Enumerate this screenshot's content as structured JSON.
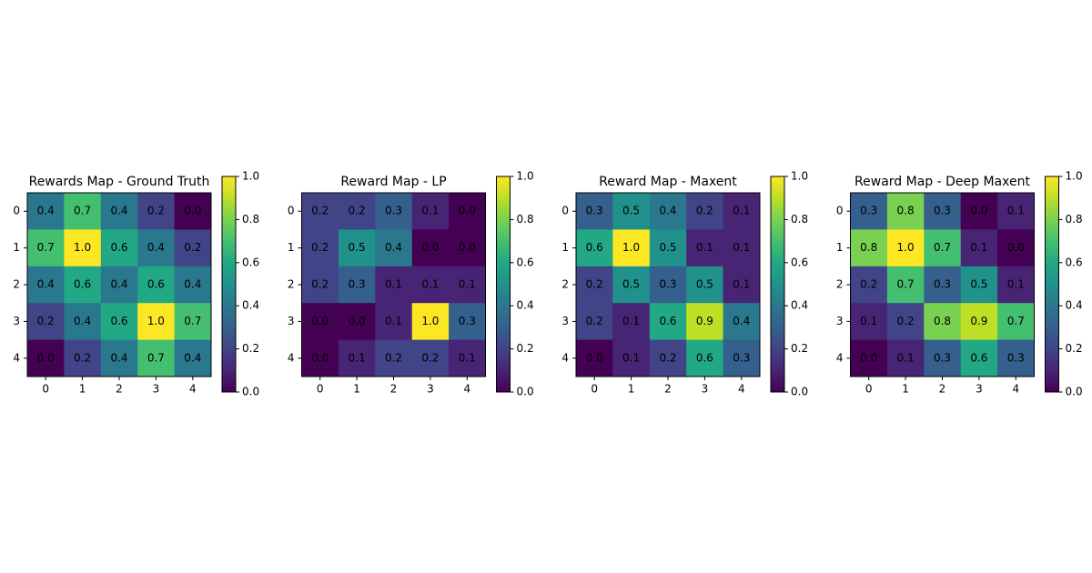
{
  "chart_data": [
    {
      "type": "heatmap",
      "title": "Rewards Map - Ground Truth",
      "colormap": "viridis",
      "x_categories": [
        "0",
        "1",
        "2",
        "3",
        "4"
      ],
      "y_categories": [
        "0",
        "1",
        "2",
        "3",
        "4"
      ],
      "values": [
        [
          0.4,
          0.7,
          0.4,
          0.2,
          0.0
        ],
        [
          0.7,
          1.0,
          0.6,
          0.4,
          0.2
        ],
        [
          0.4,
          0.6,
          0.4,
          0.6,
          0.4
        ],
        [
          0.2,
          0.4,
          0.6,
          1.0,
          0.7
        ],
        [
          0.0,
          0.2,
          0.4,
          0.7,
          0.4
        ]
      ],
      "value_labels": [
        [
          "0.4",
          "0.7",
          "0.4",
          "0.2",
          "0.0"
        ],
        [
          "0.7",
          "1.0",
          "0.6",
          "0.4",
          "0.2"
        ],
        [
          "0.4",
          "0.6",
          "0.4",
          "0.6",
          "0.4"
        ],
        [
          "0.2",
          "0.4",
          "0.6",
          "1.0",
          "0.7"
        ],
        [
          "0.0",
          "0.2",
          "0.4",
          "0.7",
          "0.4"
        ]
      ],
      "clim": [
        0,
        1
      ],
      "cticks": [
        {
          "value": 0,
          "label": "0.0"
        },
        {
          "value": 0.2,
          "label": "0.2"
        },
        {
          "value": 0.4,
          "label": "0.4"
        },
        {
          "value": 0.6,
          "label": "0.6"
        },
        {
          "value": 0.8,
          "label": "0.8"
        },
        {
          "value": 1,
          "label": "1.0"
        }
      ]
    },
    {
      "type": "heatmap",
      "title": "Reward Map - LP",
      "colormap": "viridis",
      "x_categories": [
        "0",
        "1",
        "2",
        "3",
        "4"
      ],
      "y_categories": [
        "0",
        "1",
        "2",
        "3",
        "4"
      ],
      "values": [
        [
          0.2,
          0.2,
          0.3,
          0.1,
          0.0
        ],
        [
          0.2,
          0.5,
          0.4,
          0.0,
          0.0
        ],
        [
          0.2,
          0.3,
          0.1,
          0.1,
          0.1
        ],
        [
          0.0,
          0.0,
          0.1,
          1.0,
          0.3
        ],
        [
          0.0,
          0.1,
          0.2,
          0.2,
          0.1
        ]
      ],
      "value_labels": [
        [
          "0.2",
          "0.2",
          "0.3",
          "0.1",
          "0.0"
        ],
        [
          "0.2",
          "0.5",
          "0.4",
          "0.0",
          "0.0"
        ],
        [
          "0.2",
          "0.3",
          "0.1",
          "0.1",
          "0.1"
        ],
        [
          "0.0",
          "0.0",
          "0.1",
          "1.0",
          "0.3"
        ],
        [
          "0.0",
          "0.1",
          "0.2",
          "0.2",
          "0.1"
        ]
      ],
      "clim": [
        0,
        1
      ],
      "cticks": [
        {
          "value": 0,
          "label": "0.0"
        },
        {
          "value": 0.2,
          "label": "0.2"
        },
        {
          "value": 0.4,
          "label": "0.4"
        },
        {
          "value": 0.6,
          "label": "0.6"
        },
        {
          "value": 0.8,
          "label": "0.8"
        },
        {
          "value": 1,
          "label": "1.0"
        }
      ]
    },
    {
      "type": "heatmap",
      "title": "Reward Map - Maxent",
      "colormap": "viridis",
      "x_categories": [
        "0",
        "1",
        "2",
        "3",
        "4"
      ],
      "y_categories": [
        "0",
        "1",
        "2",
        "3",
        "4"
      ],
      "values": [
        [
          0.3,
          0.5,
          0.4,
          0.2,
          0.1
        ],
        [
          0.6,
          1.0,
          0.5,
          0.1,
          0.1
        ],
        [
          0.2,
          0.5,
          0.3,
          0.5,
          0.1
        ],
        [
          0.2,
          0.1,
          0.6,
          0.9,
          0.4
        ],
        [
          0.0,
          0.1,
          0.2,
          0.6,
          0.3
        ]
      ],
      "value_labels": [
        [
          "0.3",
          "0.5",
          "0.4",
          "0.2",
          "0.1"
        ],
        [
          "0.6",
          "1.0",
          "0.5",
          "0.1",
          "0.1"
        ],
        [
          "0.2",
          "0.5",
          "0.3",
          "0.5",
          "0.1"
        ],
        [
          "0.2",
          "0.1",
          "0.6",
          "0.9",
          "0.4"
        ],
        [
          "0.0",
          "0.1",
          "0.2",
          "0.6",
          "0.3"
        ]
      ],
      "clim": [
        0,
        1
      ],
      "cticks": [
        {
          "value": 0,
          "label": "0.0"
        },
        {
          "value": 0.2,
          "label": "0.2"
        },
        {
          "value": 0.4,
          "label": "0.4"
        },
        {
          "value": 0.6,
          "label": "0.6"
        },
        {
          "value": 0.8,
          "label": "0.8"
        },
        {
          "value": 1,
          "label": "1.0"
        }
      ]
    },
    {
      "type": "heatmap",
      "title": "Reward Map - Deep Maxent",
      "colormap": "viridis",
      "x_categories": [
        "0",
        "1",
        "2",
        "3",
        "4"
      ],
      "y_categories": [
        "0",
        "1",
        "2",
        "3",
        "4"
      ],
      "values": [
        [
          0.3,
          0.8,
          0.3,
          0.0,
          0.1
        ],
        [
          0.8,
          1.0,
          0.7,
          0.1,
          0.0
        ],
        [
          0.2,
          0.7,
          0.3,
          0.5,
          0.1
        ],
        [
          0.1,
          0.2,
          0.8,
          0.9,
          0.7
        ],
        [
          0.0,
          0.1,
          0.3,
          0.6,
          0.3
        ]
      ],
      "value_labels": [
        [
          "0.3",
          "0.8",
          "0.3",
          "0.0",
          "0.1"
        ],
        [
          "0.8",
          "1.0",
          "0.7",
          "0.1",
          "0.0"
        ],
        [
          "0.2",
          "0.7",
          "0.3",
          "0.5",
          "0.1"
        ],
        [
          "0.1",
          "0.2",
          "0.8",
          "0.9",
          "0.7"
        ],
        [
          "0.0",
          "0.1",
          "0.3",
          "0.6",
          "0.3"
        ]
      ],
      "clim": [
        0,
        1
      ],
      "cticks": [
        {
          "value": 0,
          "label": "0.0"
        },
        {
          "value": 0.2,
          "label": "0.2"
        },
        {
          "value": 0.4,
          "label": "0.4"
        },
        {
          "value": 0.6,
          "label": "0.6"
        },
        {
          "value": 0.8,
          "label": "0.8"
        },
        {
          "value": 1,
          "label": "1.0"
        }
      ]
    }
  ]
}
